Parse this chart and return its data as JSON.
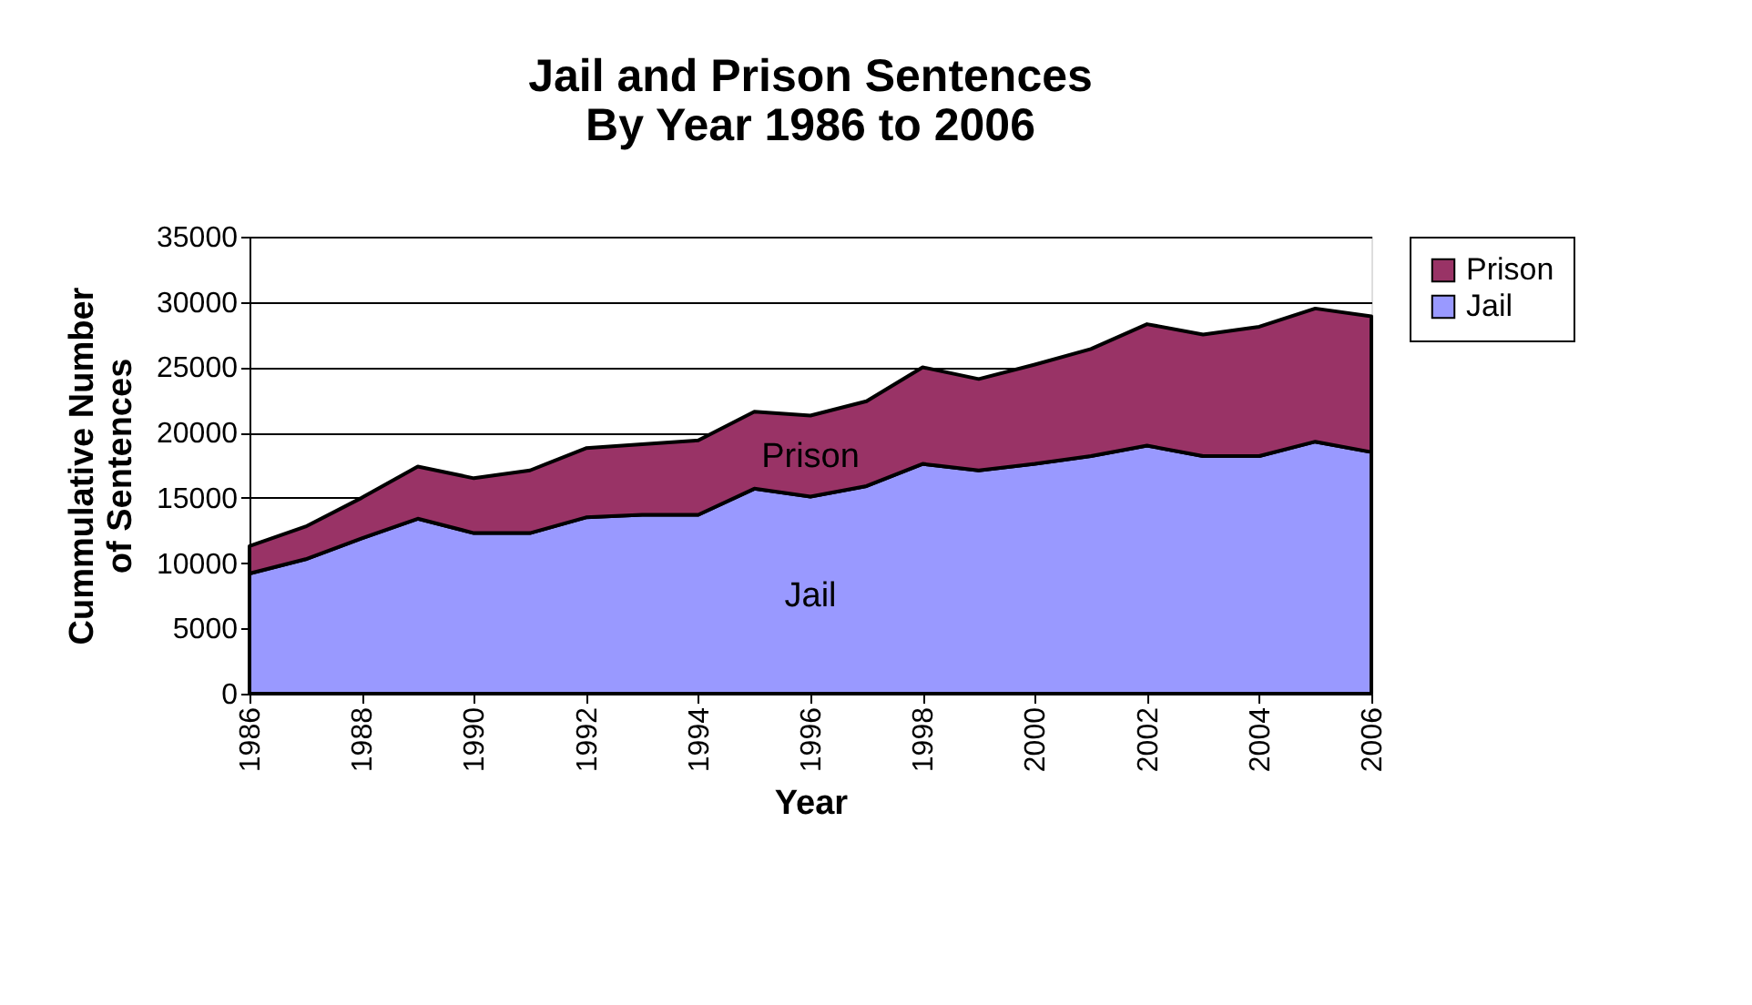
{
  "chart_data": {
    "type": "area",
    "title": "Jail and Prison Sentences\nBy Year 1986 to 2006",
    "xlabel": "Year",
    "ylabel": "Cummulative Number\nof Sentences",
    "x": [
      1986,
      1987,
      1988,
      1989,
      1990,
      1991,
      1992,
      1993,
      1994,
      1995,
      1996,
      1997,
      1998,
      1999,
      2000,
      2001,
      2002,
      2003,
      2004,
      2005,
      2006
    ],
    "stacked": true,
    "series": [
      {
        "name": "Jail",
        "color": "#9999ff",
        "values": [
          9200,
          10300,
          11900,
          13400,
          12300,
          12300,
          13500,
          13700,
          13700,
          15700,
          15100,
          15900,
          17600,
          17100,
          17600,
          18200,
          19000,
          18200,
          18200,
          19300,
          18500
        ]
      },
      {
        "name": "Prison",
        "color": "#993366",
        "values": [
          2100,
          2500,
          3100,
          4000,
          4200,
          4800,
          5300,
          5400,
          5700,
          5900,
          6200,
          6500,
          7400,
          7000,
          7600,
          8200,
          9300,
          9300,
          9900,
          10200,
          10400
        ]
      }
    ],
    "xlim": [
      1986,
      2006
    ],
    "xticks": [
      1986,
      1988,
      1990,
      1992,
      1994,
      1996,
      1998,
      2000,
      2002,
      2004,
      2006
    ],
    "ylim": [
      0,
      35000
    ],
    "yticks": [
      0,
      5000,
      10000,
      15000,
      20000,
      25000,
      30000,
      35000
    ],
    "grid": "y",
    "legend": "right"
  }
}
